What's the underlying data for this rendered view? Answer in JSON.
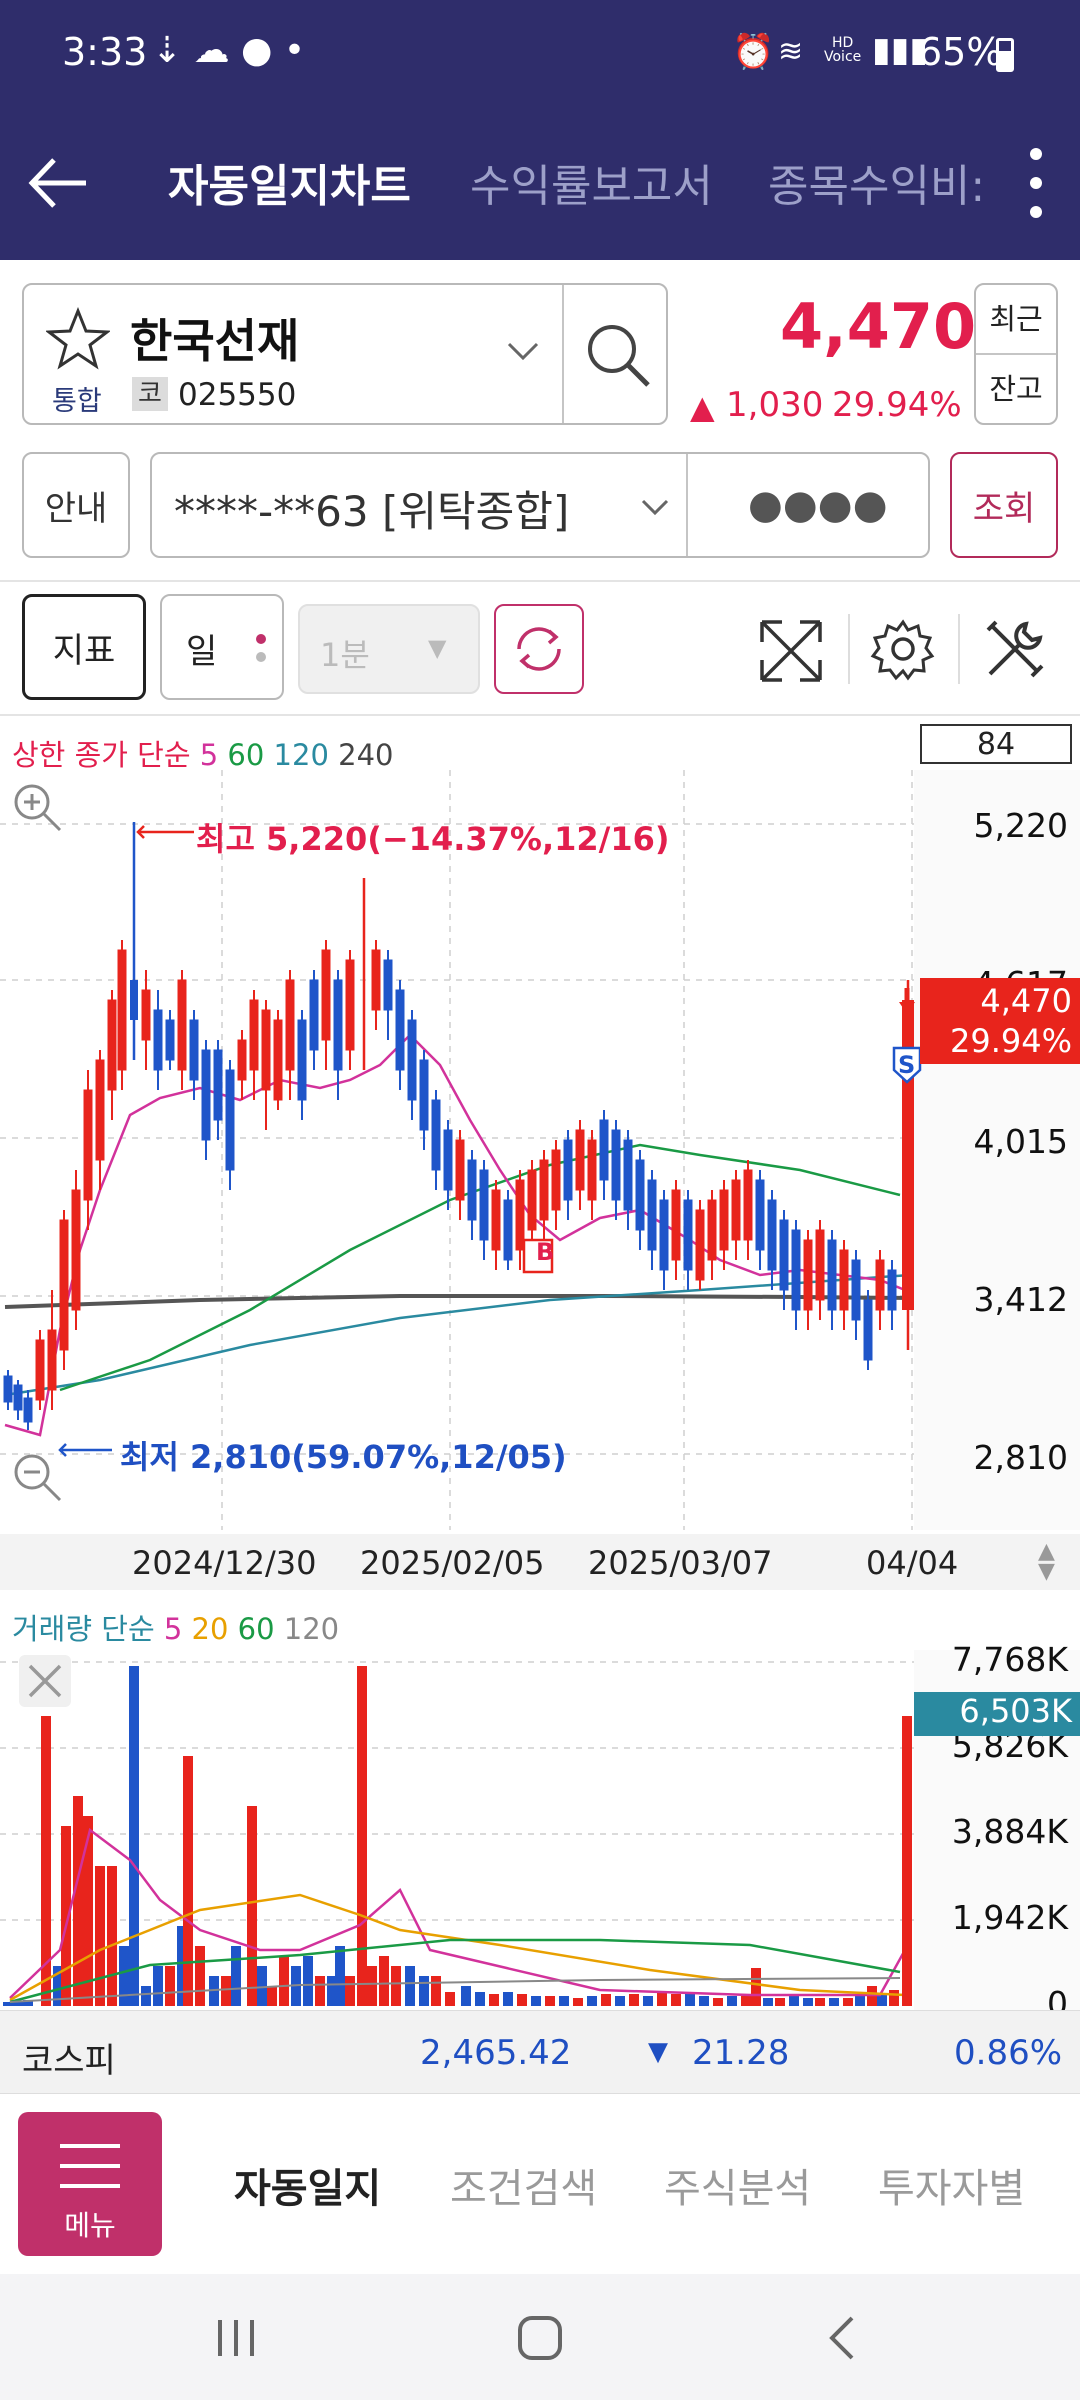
{
  "status": {
    "time": "3:33",
    "battery": "65%",
    "hd_label": "HD",
    "voice_label": "Voice"
  },
  "header": {
    "tabs": [
      "자동일지차트",
      "수익률보고서",
      "종목수익비:"
    ],
    "active_tab": 0
  },
  "stock": {
    "name": "한국선재",
    "market": "통합",
    "code_prefix": "코",
    "code": "025550",
    "price": "4,470",
    "change": "1,030",
    "change_pct": "29.94%",
    "btn_recent": "최근",
    "btn_balance": "잔고"
  },
  "account": {
    "info_btn": "안내",
    "number": "****-**63 [위탁종합]",
    "password": "●●●●",
    "query_btn": "조회"
  },
  "chart_toolbar": {
    "indicator_btn": "지표",
    "period_btn": "일",
    "interval": "1분"
  },
  "price_chart": {
    "legend": {
      "prefix": "상한 종가 단순",
      "ma5": "5",
      "ma60": "60",
      "ma120": "120",
      "ma240": "240"
    },
    "count_box": "84",
    "y_labels": [
      "5,220",
      "4,617",
      "4,015",
      "3,412",
      "2,810"
    ],
    "high_note": "최고 5,220(−14.37%,12/16)",
    "low_note": "최저 2,810(59.07%,12/05)",
    "current_tag": {
      "price": "4,470",
      "pct": "29.94%"
    },
    "buy_marker": "B",
    "sell_marker": "S",
    "x_labels": [
      "2024/12/30",
      "2025/02/05",
      "2025/03/07",
      "04/04"
    ]
  },
  "volume_chart": {
    "legend": {
      "prefix": "거래량 단순",
      "ma5": "5",
      "ma20": "20",
      "ma60": "60",
      "ma120": "120"
    },
    "y_labels": [
      "7,768K",
      "5,826K",
      "3,884K",
      "1,942K",
      "0"
    ],
    "current_tag": "6,503K"
  },
  "chart_data": {
    "type": "candlestick",
    "price_range": [
      2810,
      5220
    ],
    "volume_range_k": [
      0,
      7768
    ],
    "high": 5220,
    "low": 2810,
    "last": 4470,
    "last_volume_k": 6503
  },
  "index_bar": {
    "name": "코스피",
    "value": "2,465.42",
    "change": "21.28",
    "pct": "0.86%"
  },
  "bottom_nav": {
    "menu_label": "메뉴",
    "tabs": [
      "자동일지",
      "조건검색",
      "주식분석",
      "투자자별"
    ]
  }
}
